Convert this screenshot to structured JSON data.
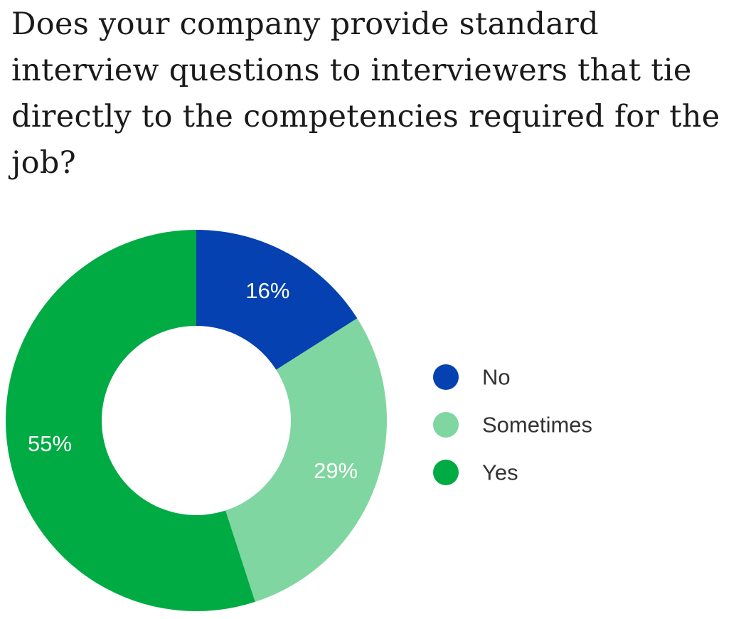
{
  "chart_data": {
    "type": "pie",
    "title": "Does your company provide standard interview questions to interviewers that tie directly to the competencies required for the job?",
    "donut": true,
    "categories": [
      "No",
      "Sometimes",
      "Yes"
    ],
    "values": [
      16,
      29,
      55
    ],
    "labels": [
      "16%",
      "29%",
      "55%"
    ],
    "colors": [
      "#0541b0",
      "#80d6a0",
      "#00ab44"
    ],
    "legend_position": "right"
  }
}
